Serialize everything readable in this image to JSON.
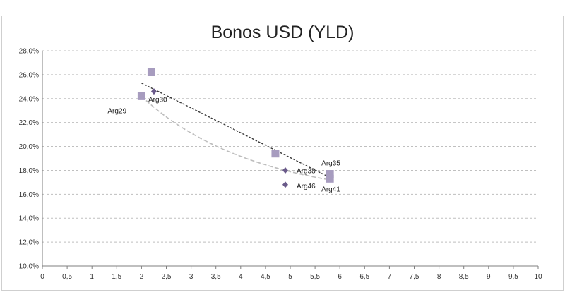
{
  "chart_data": {
    "type": "scatter",
    "title": "Bonos USD (YLD)",
    "xlabel": "",
    "ylabel": "",
    "xlim": [
      0,
      10
    ],
    "ylim": [
      10,
      28
    ],
    "x_ticks": [
      "0",
      "0,5",
      "1",
      "1,5",
      "2",
      "2,5",
      "3",
      "3,5",
      "4",
      "4,5",
      "5",
      "5,5",
      "6",
      "6,5",
      "7",
      "7,5",
      "8",
      "8,5",
      "9",
      "9,5",
      "10"
    ],
    "y_ticks": [
      "10,0%",
      "12,0%",
      "14,0%",
      "16,0%",
      "18,0%",
      "20,0%",
      "22,0%",
      "24,0%",
      "26,0%",
      "28,0%"
    ],
    "grid": true,
    "series": [
      {
        "marker": "square",
        "color": "#a79cbf",
        "points": [
          {
            "x": 2.2,
            "y": 26.2,
            "label": ""
          },
          {
            "x": 2.0,
            "y": 24.2,
            "label": "Arg29"
          },
          {
            "x": 4.7,
            "y": 19.4,
            "label": ""
          },
          {
            "x": 5.8,
            "y": 17.7,
            "label": "Arg35"
          },
          {
            "x": 5.8,
            "y": 17.3,
            "label": "Arg41"
          }
        ],
        "trendline": {
          "style": "dashed",
          "color": "#bdbdbd",
          "from": [
            2.0,
            24.2
          ],
          "to": [
            5.8,
            17.2
          ]
        }
      },
      {
        "marker": "diamond",
        "color": "#6a5a8a",
        "points": [
          {
            "x": 2.25,
            "y": 24.6,
            "label": "Arg30"
          },
          {
            "x": 4.9,
            "y": 18.0,
            "label": "Arg38"
          },
          {
            "x": 4.9,
            "y": 16.8,
            "label": "Arg46"
          }
        ],
        "trendline": {
          "style": "dashed",
          "color": "#3a3a3a",
          "from": [
            2.0,
            25.3
          ],
          "to": [
            5.8,
            17.4
          ]
        }
      }
    ]
  }
}
